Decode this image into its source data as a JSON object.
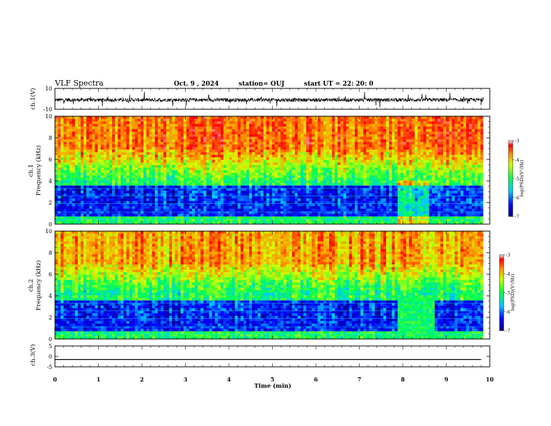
{
  "header": {
    "title": "VLF Spectra",
    "date": "Oct. 9  , 2024",
    "station": "station= OUJ",
    "start": "start  UT  =   22: 20: 0"
  },
  "chart_data": [
    {
      "type": "line",
      "panel": "ch1-waveform",
      "ylabel": "ch.1(V)",
      "ylim": [
        -10,
        10
      ],
      "yticks": [
        "10",
        "-10"
      ],
      "xlim": [
        0,
        10
      ],
      "description_of_signal": "noisy waveform around -1 V with spikes"
    },
    {
      "type": "heatmap",
      "panel": "ch1-spectrogram",
      "ylabel_top": "ch.1",
      "ylabel": "Frequency  (kHz)",
      "ylim": [
        0,
        10
      ],
      "yticks": [
        "0",
        "2",
        "4",
        "6",
        "8",
        "10"
      ],
      "xlim": [
        0,
        9.85
      ],
      "colorbar": {
        "label": "log(PSD)(V²/Hz)",
        "range": [
          -7,
          -3
        ],
        "ticks": [
          "-3",
          "-4",
          "-5",
          "-6",
          "-7"
        ]
      }
    },
    {
      "type": "heatmap",
      "panel": "ch2-spectrogram",
      "ylabel_top": "ch.2",
      "ylabel": "Frequency  (kHz)",
      "ylim": [
        0,
        10
      ],
      "yticks": [
        "0",
        "2",
        "4",
        "6",
        "8",
        "10"
      ],
      "xlim": [
        0,
        9.85
      ],
      "colorbar": {
        "label": "log(PSD)(V²/Hz)",
        "range": [
          -7,
          -3
        ],
        "ticks": [
          "-3",
          "-4",
          "-5",
          "-6",
          "-7"
        ]
      }
    },
    {
      "type": "line",
      "panel": "ch3-waveform",
      "ylabel": "ch.3(V)",
      "ylim": [
        -5,
        5
      ],
      "yticks": [
        "5",
        "0",
        "-5"
      ],
      "x": [
        0,
        9.8
      ],
      "y": [
        -1.5,
        -1.5
      ]
    }
  ],
  "xaxis": {
    "label": "Time  (min)",
    "ticks": [
      "0",
      "1",
      "2",
      "3",
      "4",
      "5",
      "6",
      "7",
      "8",
      "9",
      "10"
    ],
    "range": [
      0,
      10
    ]
  }
}
